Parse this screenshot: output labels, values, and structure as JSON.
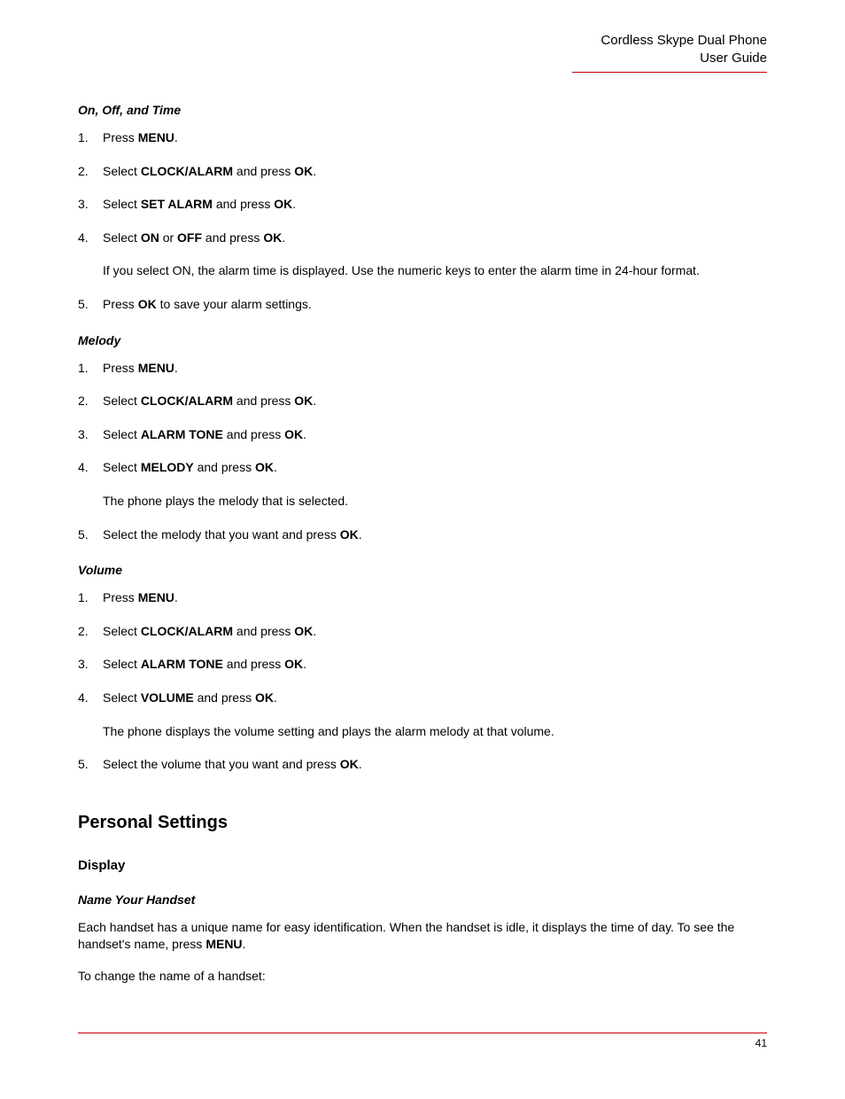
{
  "header": {
    "line1": "Cordless Skype Dual Phone",
    "line2": "User Guide"
  },
  "sections": {
    "onOffTime": {
      "title": "On, Off, and Time",
      "steps": [
        {
          "n": "1.",
          "pre": "Press ",
          "bold1": "MENU",
          "post": "."
        },
        {
          "n": "2.",
          "pre": "Select ",
          "bold1": "CLOCK/ALARM",
          "mid": " and press ",
          "bold2": "OK",
          "post": "."
        },
        {
          "n": "3.",
          "pre": "Select ",
          "bold1": "SET ALARM",
          "mid": " and press ",
          "bold2": "OK",
          "post": "."
        },
        {
          "n": "4.",
          "pre": "Select ",
          "bold1": "ON",
          "mid": " or ",
          "bold2": "OFF",
          "mid2": " and press ",
          "bold3": "OK",
          "post": ".",
          "note": "If you select ON, the alarm time is displayed. Use the numeric keys to enter the alarm time in 24-hour format."
        },
        {
          "n": "5.",
          "pre": "Press ",
          "bold1": "OK",
          "post": " to save your alarm settings."
        }
      ]
    },
    "melody": {
      "title": "Melody",
      "steps": [
        {
          "n": "1.",
          "pre": "Press ",
          "bold1": "MENU",
          "post": "."
        },
        {
          "n": "2.",
          "pre": "Select ",
          "bold1": "CLOCK/ALARM",
          "mid": " and press ",
          "bold2": "OK",
          "post": "."
        },
        {
          "n": "3.",
          "pre": "Select ",
          "bold1": "ALARM TONE",
          "mid": " and press ",
          "bold2": "OK",
          "post": "."
        },
        {
          "n": "4.",
          "pre": "Select ",
          "bold1": "MELODY",
          "mid": " and press ",
          "bold2": "OK",
          "post": ".",
          "note": "The phone plays the melody that is selected."
        },
        {
          "n": "5.",
          "pre": "Select the melody that you want and press ",
          "bold1": "OK",
          "post": "."
        }
      ]
    },
    "volume": {
      "title": "Volume",
      "steps": [
        {
          "n": "1.",
          "pre": "Press ",
          "bold1": "MENU",
          "post": "."
        },
        {
          "n": "2.",
          "pre": "Select ",
          "bold1": "CLOCK/ALARM",
          "mid": " and press ",
          "bold2": "OK",
          "post": "."
        },
        {
          "n": "3.",
          "pre": "Select ",
          "bold1": "ALARM TONE",
          "mid": " and press ",
          "bold2": "OK",
          "post": "."
        },
        {
          "n": "4.",
          "pre": "Select ",
          "bold1": "VOLUME",
          "mid": " and press ",
          "bold2": "OK",
          "post": ".",
          "note": "The phone displays the volume setting and plays the alarm melody at that volume."
        },
        {
          "n": "5.",
          "pre": "Select the volume that you want and press ",
          "bold1": "OK",
          "post": "."
        }
      ]
    }
  },
  "personal": {
    "heading": "Personal Settings",
    "display": {
      "heading": "Display",
      "nameHandset": {
        "title": "Name Your Handset",
        "para1_pre": "Each handset has a unique name for easy identification. When the handset is idle, it displays the time of day. To see the handset's name, press ",
        "para1_bold": "MENU",
        "para1_post": ".",
        "para2": "To change the name of a handset:"
      }
    }
  },
  "pageNumber": "41"
}
